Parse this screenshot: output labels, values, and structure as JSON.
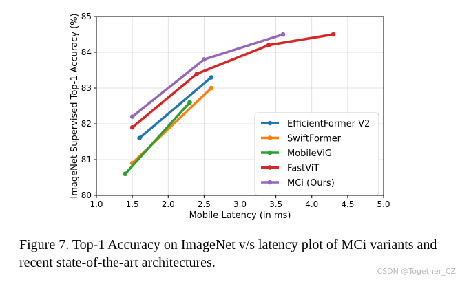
{
  "chart_data": {
    "type": "line",
    "title": "",
    "xlabel": "Mobile Latency (in ms)",
    "ylabel": "ImageNet Supervised Top-1 Accuracy (%)",
    "xlim": [
      1.0,
      5.0
    ],
    "ylim": [
      80,
      85
    ],
    "xticks": [
      "1.0",
      "1.5",
      "2.0",
      "2.5",
      "3.0",
      "3.5",
      "4.0",
      "4.5",
      "5.0"
    ],
    "yticks": [
      "80",
      "81",
      "82",
      "83",
      "84",
      "85"
    ],
    "grid": true,
    "legend_position": "lower-right",
    "series": [
      {
        "name": "EfficientFormer V2",
        "color": "#1f77b4",
        "x": [
          1.6,
          2.6
        ],
        "y": [
          81.6,
          83.3
        ]
      },
      {
        "name": "SwiftFormer",
        "color": "#ff7f0e",
        "x": [
          1.5,
          2.6
        ],
        "y": [
          80.9,
          83.0
        ]
      },
      {
        "name": "MobileViG",
        "color": "#2ca02c",
        "x": [
          1.4,
          2.3
        ],
        "y": [
          80.6,
          82.6
        ]
      },
      {
        "name": "FastViT",
        "color": "#d62728",
        "x": [
          1.5,
          2.4,
          3.4,
          4.3
        ],
        "y": [
          81.9,
          83.4,
          84.2,
          84.5
        ]
      },
      {
        "name": "MCi (Ours)",
        "color": "#9467bd",
        "x": [
          1.5,
          2.5,
          3.6
        ],
        "y": [
          82.2,
          83.8,
          84.5
        ]
      }
    ]
  },
  "caption": "Figure 7. Top-1 Accuracy on ImageNet v/s latency plot of MCi variants and recent state-of-the-art architectures.",
  "watermark": "CSDN @Together_CZ"
}
